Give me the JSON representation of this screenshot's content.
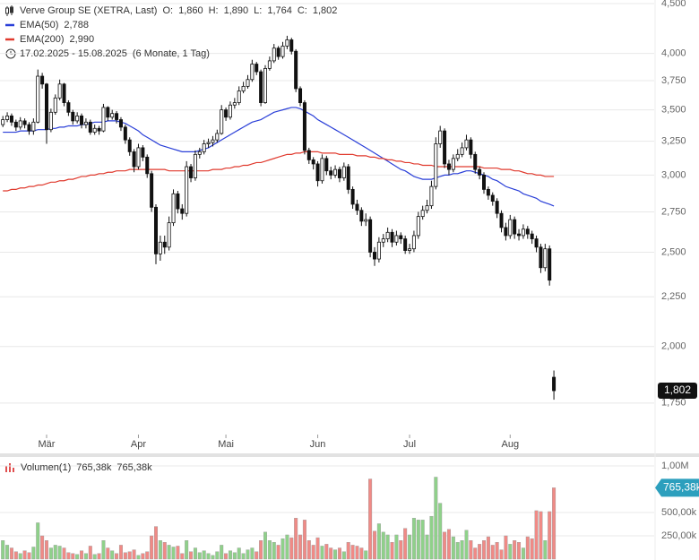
{
  "chart_data": [
    {
      "type": "candlestick",
      "title": "Verve Group SE (XETRA, Last)",
      "ohlc_headers": [
        "O:",
        "H:",
        "L:",
        "C:"
      ],
      "ohlc_value_labels": [
        "1,860",
        "1,890",
        "1,764",
        "1,802"
      ],
      "period": "17.02.2025 - 15.08.2025",
      "period_note": "(6 Monate, 1 Tag)",
      "categories": [
        null,
        null,
        null,
        null,
        null,
        null,
        null,
        null,
        null,
        null,
        "Mär",
        null,
        null,
        null,
        null,
        null,
        null,
        null,
        null,
        null,
        null,
        null,
        null,
        null,
        null,
        null,
        null,
        null,
        null,
        null,
        null,
        "Apr",
        null,
        null,
        null,
        null,
        null,
        null,
        null,
        null,
        null,
        null,
        null,
        null,
        null,
        null,
        null,
        null,
        null,
        null,
        null,
        "Mai",
        null,
        null,
        null,
        null,
        null,
        null,
        null,
        null,
        null,
        null,
        null,
        null,
        null,
        null,
        null,
        null,
        null,
        null,
        null,
        null,
        "Jun",
        null,
        null,
        null,
        null,
        null,
        null,
        null,
        null,
        null,
        null,
        null,
        null,
        null,
        null,
        null,
        null,
        null,
        null,
        null,
        null,
        "Jul",
        null,
        null,
        null,
        null,
        null,
        null,
        null,
        null,
        null,
        null,
        null,
        null,
        null,
        null,
        null,
        null,
        null,
        null,
        null,
        null,
        null,
        null,
        "Aug",
        null,
        null,
        null,
        null,
        null,
        null,
        null,
        null,
        null,
        null
      ],
      "open": [
        3380,
        3420,
        3450,
        3400,
        3360,
        3410,
        3380,
        3330,
        3400,
        3790,
        3720,
        3340,
        3480,
        3600,
        3720,
        3560,
        3480,
        3410,
        3450,
        3380,
        3400,
        3320,
        3350,
        3330,
        3520,
        3440,
        3470,
        3420,
        3360,
        3260,
        3170,
        3060,
        3200,
        3130,
        3010,
        2780,
        2490,
        2560,
        2530,
        2680,
        2870,
        2770,
        2740,
        3060,
        2980,
        3150,
        3170,
        3230,
        3240,
        3260,
        3310,
        3500,
        3440,
        3540,
        3560,
        3660,
        3700,
        3760,
        3900,
        3830,
        3560,
        3860,
        3930,
        4050,
        3970,
        4070,
        4130,
        4020,
        3680,
        3560,
        3180,
        3110,
        3080,
        2960,
        3120,
        3030,
        3000,
        3040,
        2980,
        3060,
        2900,
        2800,
        2760,
        2690,
        2700,
        2500,
        2460,
        2560,
        2580,
        2620,
        2560,
        2600,
        2580,
        2510,
        2520,
        2600,
        2720,
        2760,
        2790,
        2920,
        3230,
        3330,
        3080,
        3040,
        3120,
        3150,
        3200,
        3260,
        3150,
        3040,
        3000,
        2900,
        2860,
        2820,
        2740,
        2650,
        2600,
        2700,
        2610,
        2600,
        2640,
        2610,
        2580,
        2530,
        2410,
        2520,
        1860
      ],
      "high": [
        3450,
        3480,
        3470,
        3420,
        3440,
        3430,
        3400,
        3430,
        3850,
        3820,
        3730,
        3510,
        3630,
        3760,
        3730,
        3580,
        3500,
        3480,
        3470,
        3430,
        3420,
        3380,
        3370,
        3550,
        3530,
        3500,
        3490,
        3440,
        3380,
        3280,
        3190,
        3230,
        3220,
        3150,
        3030,
        2800,
        2600,
        2600,
        2720,
        2900,
        2890,
        2800,
        3100,
        3080,
        3180,
        3200,
        3260,
        3270,
        3290,
        3340,
        3540,
        3520,
        3570,
        3600,
        3700,
        3740,
        3800,
        3940,
        3920,
        3850,
        3890,
        3970,
        4090,
        4070,
        4110,
        4170,
        4150,
        4040,
        3700,
        3580,
        3200,
        3130,
        3100,
        3150,
        3140,
        3060,
        3070,
        3060,
        3090,
        3080,
        2920,
        2830,
        2780,
        2740,
        2720,
        2530,
        2590,
        2610,
        2650,
        2640,
        2630,
        2620,
        2600,
        2550,
        2630,
        2750,
        2790,
        2830,
        2960,
        3280,
        3370,
        3350,
        3110,
        3150,
        3190,
        3240,
        3300,
        3280,
        3170,
        3060,
        3020,
        2920,
        2880,
        2840,
        2760,
        2680,
        2730,
        2720,
        2640,
        2670,
        2660,
        2630,
        2600,
        2550,
        2550,
        2540,
        1890
      ],
      "low": [
        3360,
        3400,
        3370,
        3330,
        3340,
        3350,
        3300,
        3300,
        3390,
        3680,
        3230,
        3320,
        3460,
        3580,
        3530,
        3450,
        3380,
        3390,
        3350,
        3350,
        3300,
        3300,
        3300,
        3320,
        3410,
        3420,
        3390,
        3330,
        3230,
        3140,
        3020,
        3040,
        3100,
        2980,
        2750,
        2430,
        2450,
        2490,
        2510,
        2660,
        2740,
        2700,
        2720,
        2950,
        2960,
        3120,
        3150,
        3200,
        3210,
        3240,
        3300,
        3410,
        3420,
        3510,
        3540,
        3640,
        3680,
        3740,
        3800,
        3530,
        3550,
        3840,
        3910,
        3940,
        3950,
        4040,
        3990,
        3650,
        3530,
        3150,
        3080,
        3040,
        2920,
        2940,
        3000,
        2970,
        2980,
        2950,
        2960,
        2870,
        2770,
        2730,
        2660,
        2660,
        2470,
        2420,
        2440,
        2530,
        2560,
        2530,
        2540,
        2550,
        2490,
        2490,
        2500,
        2580,
        2700,
        2740,
        2770,
        2900,
        3200,
        3050,
        3000,
        3020,
        3100,
        3130,
        3180,
        3120,
        3010,
        2970,
        2870,
        2830,
        2790,
        2710,
        2620,
        2570,
        2580,
        2580,
        2570,
        2580,
        2580,
        2550,
        2500,
        2380,
        2390,
        2310,
        1764
      ],
      "close": [
        3420,
        3450,
        3400,
        3360,
        3410,
        3380,
        3330,
        3400,
        3790,
        3720,
        3340,
        3480,
        3600,
        3720,
        3560,
        3480,
        3410,
        3450,
        3380,
        3400,
        3320,
        3350,
        3330,
        3520,
        3440,
        3470,
        3420,
        3360,
        3260,
        3170,
        3060,
        3200,
        3130,
        3010,
        2780,
        2490,
        2560,
        2530,
        2680,
        2870,
        2770,
        2740,
        3060,
        2980,
        3150,
        3170,
        3230,
        3240,
        3260,
        3310,
        3500,
        3440,
        3540,
        3560,
        3660,
        3700,
        3760,
        3900,
        3830,
        3560,
        3860,
        3930,
        4050,
        3970,
        4070,
        4130,
        4020,
        3680,
        3560,
        3180,
        3110,
        3080,
        2960,
        3120,
        3030,
        3000,
        3040,
        2980,
        3060,
        2900,
        2800,
        2760,
        2690,
        2700,
        2500,
        2460,
        2560,
        2580,
        2620,
        2560,
        2600,
        2580,
        2510,
        2520,
        2600,
        2720,
        2760,
        2790,
        2920,
        3230,
        3330,
        3080,
        3040,
        3120,
        3150,
        3200,
        3260,
        3150,
        3040,
        3000,
        2900,
        2860,
        2820,
        2740,
        2650,
        2600,
        2700,
        2610,
        2600,
        2640,
        2610,
        2580,
        2530,
        2410,
        2520,
        2340,
        1802
      ],
      "up_color": "#ffffff",
      "down_color": "#111111",
      "series": [
        {
          "name": "EMA(50)",
          "color": "#2a3fd8",
          "last_label": "2,788",
          "values": [
            3320,
            3320,
            3320,
            3320,
            3330,
            3330,
            3330,
            3330,
            3340,
            3340,
            3340,
            3350,
            3350,
            3360,
            3360,
            3370,
            3370,
            3370,
            3380,
            3380,
            3390,
            3400,
            3400,
            3400,
            3410,
            3410,
            3410,
            3400,
            3390,
            3370,
            3350,
            3330,
            3300,
            3280,
            3260,
            3240,
            3220,
            3210,
            3200,
            3190,
            3180,
            3170,
            3170,
            3170,
            3170,
            3180,
            3190,
            3200,
            3220,
            3240,
            3260,
            3280,
            3300,
            3320,
            3340,
            3360,
            3380,
            3400,
            3410,
            3420,
            3440,
            3460,
            3480,
            3490,
            3500,
            3510,
            3520,
            3520,
            3510,
            3490,
            3470,
            3450,
            3420,
            3400,
            3380,
            3360,
            3340,
            3320,
            3300,
            3280,
            3260,
            3240,
            3220,
            3200,
            3180,
            3160,
            3140,
            3120,
            3100,
            3080,
            3060,
            3040,
            3030,
            3010,
            2990,
            2980,
            2970,
            2970,
            2970,
            2980,
            2990,
            3000,
            3000,
            3010,
            3010,
            3020,
            3030,
            3030,
            3020,
            3010,
            3000,
            2990,
            2970,
            2960,
            2940,
            2920,
            2910,
            2900,
            2890,
            2870,
            2860,
            2850,
            2840,
            2820,
            2810,
            2800,
            2788
          ]
        },
        {
          "name": "EMA(200)",
          "color": "#e03a2e",
          "last_label": "2,990",
          "values": [
            2890,
            2890,
            2900,
            2900,
            2910,
            2910,
            2920,
            2920,
            2930,
            2930,
            2940,
            2950,
            2950,
            2960,
            2960,
            2970,
            2970,
            2980,
            2990,
            2990,
            3000,
            3000,
            3010,
            3010,
            3020,
            3020,
            3030,
            3030,
            3030,
            3040,
            3040,
            3040,
            3040,
            3040,
            3040,
            3040,
            3040,
            3040,
            3030,
            3030,
            3030,
            3030,
            3030,
            3030,
            3030,
            3030,
            3030,
            3030,
            3040,
            3040,
            3040,
            3050,
            3050,
            3060,
            3060,
            3070,
            3070,
            3080,
            3090,
            3090,
            3100,
            3110,
            3120,
            3130,
            3140,
            3150,
            3150,
            3160,
            3160,
            3170,
            3170,
            3170,
            3170,
            3160,
            3160,
            3160,
            3160,
            3150,
            3150,
            3150,
            3150,
            3140,
            3140,
            3140,
            3130,
            3130,
            3120,
            3120,
            3110,
            3110,
            3100,
            3100,
            3090,
            3090,
            3080,
            3080,
            3070,
            3070,
            3070,
            3060,
            3060,
            3060,
            3060,
            3060,
            3060,
            3060,
            3060,
            3060,
            3060,
            3060,
            3050,
            3050,
            3050,
            3050,
            3040,
            3040,
            3040,
            3030,
            3030,
            3020,
            3010,
            3010,
            3000,
            3000,
            2990,
            2990,
            2990
          ]
        }
      ],
      "log_scale": true,
      "ylim": [
        1557,
        4538
      ],
      "yticks": [
        {
          "value": 1750,
          "label": "1,750"
        },
        {
          "value": 2000,
          "label": "2,000"
        },
        {
          "value": 2250,
          "label": "2,250"
        },
        {
          "value": 2500,
          "label": "2,500"
        },
        {
          "value": 2750,
          "label": "2,750"
        },
        {
          "value": 3000,
          "label": "3,000"
        },
        {
          "value": 3250,
          "label": "3,250"
        },
        {
          "value": 3500,
          "label": "3,500"
        },
        {
          "value": 3750,
          "label": "3,750"
        },
        {
          "value": 4000,
          "label": "4,000"
        },
        {
          "value": 4500,
          "label": "4,500"
        }
      ],
      "grid": true
    },
    {
      "type": "bar",
      "title": "Volumen(1)",
      "last_label": "765,38k",
      "up_color": "#8fd18a",
      "down_color": "#f08a86",
      "values": [
        200000,
        150000,
        120000,
        80000,
        60000,
        90000,
        70000,
        130000,
        390000,
        250000,
        200000,
        120000,
        150000,
        140000,
        120000,
        70000,
        60000,
        50000,
        90000,
        60000,
        140000,
        50000,
        60000,
        200000,
        120000,
        90000,
        60000,
        150000,
        70000,
        80000,
        100000,
        40000,
        60000,
        80000,
        250000,
        350000,
        200000,
        180000,
        150000,
        130000,
        140000,
        60000,
        200000,
        80000,
        120000,
        70000,
        90000,
        60000,
        40000,
        80000,
        150000,
        60000,
        90000,
        70000,
        120000,
        60000,
        100000,
        120000,
        80000,
        200000,
        290000,
        200000,
        180000,
        150000,
        220000,
        260000,
        230000,
        440000,
        260000,
        420000,
        200000,
        150000,
        230000,
        140000,
        160000,
        120000,
        100000,
        120000,
        80000,
        180000,
        150000,
        140000,
        120000,
        90000,
        860000,
        300000,
        380000,
        290000,
        260000,
        180000,
        260000,
        200000,
        330000,
        260000,
        440000,
        420000,
        420000,
        260000,
        460000,
        880000,
        600000,
        290000,
        320000,
        240000,
        180000,
        200000,
        310000,
        200000,
        120000,
        160000,
        200000,
        240000,
        150000,
        180000,
        100000,
        250000,
        160000,
        200000,
        180000,
        120000,
        240000,
        220000,
        520000,
        510000,
        200000,
        510000,
        765380
      ],
      "ylim": [
        0,
        1077000
      ],
      "yticks": [
        {
          "value": 250000,
          "label": "250,00k"
        },
        {
          "value": 500000,
          "label": "500,00k"
        },
        {
          "value": 1000000,
          "label": "1,00M"
        }
      ],
      "grid": true
    }
  ]
}
